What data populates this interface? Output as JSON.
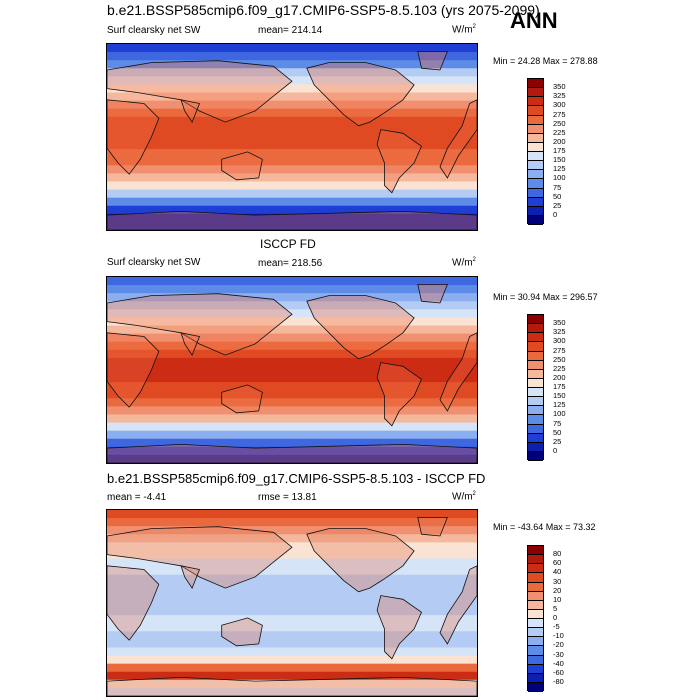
{
  "chart_data": [
    {
      "type": "heatmap",
      "title": "b.e21.BSSP585cmip6.f09_g17.CMIP6-SSP5-8.5.103 (yrs 2075-2099)",
      "season": "ANN",
      "left_label": "Surf clearsky net SW",
      "center_label": "mean= 214.14",
      "units": "W/m",
      "units_sup": "2",
      "min_max": "Min =  24.28 Max = 278.88",
      "levels": [
        "350",
        "325",
        "300",
        "275",
        "250",
        "225",
        "200",
        "175",
        "150",
        "125",
        "100",
        "75",
        "50",
        "25",
        "0"
      ],
      "colors": [
        "#8b0000",
        "#b31a0e",
        "#cc2c14",
        "#e04a22",
        "#ea6a3e",
        "#f09070",
        "#f5b89c",
        "#fbe3d3",
        "#d6e4f7",
        "#b4ccf3",
        "#8aaef0",
        "#5d8ce8",
        "#3f68e0",
        "#1f3fd4",
        "#0d1fb0",
        "#00007a"
      ]
    },
    {
      "type": "heatmap",
      "title": "ISCCP FD",
      "left_label": "Surf clearsky net SW",
      "center_label": "mean= 218.56",
      "units": "W/m",
      "units_sup": "2",
      "min_max": "Min =  30.94 Max = 296.57",
      "levels": [
        "350",
        "325",
        "300",
        "275",
        "250",
        "225",
        "200",
        "175",
        "150",
        "125",
        "100",
        "75",
        "50",
        "25",
        "0"
      ],
      "colors": [
        "#8b0000",
        "#b31a0e",
        "#cc2c14",
        "#e04a22",
        "#ea6a3e",
        "#f09070",
        "#f5b89c",
        "#fbe3d3",
        "#d6e4f7",
        "#b4ccf3",
        "#8aaef0",
        "#5d8ce8",
        "#3f68e0",
        "#1f3fd4",
        "#0d1fb0",
        "#00007a"
      ]
    },
    {
      "type": "heatmap",
      "title": "b.e21.BSSP585cmip6.f09_g17.CMIP6-SSP5-8.5.103 - ISCCP FD",
      "left_label": "mean =  -4.41",
      "center_label": "rmse =  13.81",
      "units": "W/m",
      "units_sup": "2",
      "min_max": "Min = -43.64 Max =  73.32",
      "levels": [
        "80",
        "60",
        "40",
        "30",
        "20",
        "10",
        "5",
        "0",
        "-5",
        "-10",
        "-20",
        "-30",
        "-40",
        "-60",
        "-80"
      ],
      "colors": [
        "#8b0000",
        "#b31a0e",
        "#cc2c14",
        "#e04a22",
        "#ea6a3e",
        "#f09070",
        "#f5b89c",
        "#fbe3d3",
        "#d6e4f7",
        "#b4ccf3",
        "#8aaef0",
        "#5d8ce8",
        "#3f68e0",
        "#1f3fd4",
        "#0d1fb0",
        "#00007a"
      ]
    }
  ]
}
